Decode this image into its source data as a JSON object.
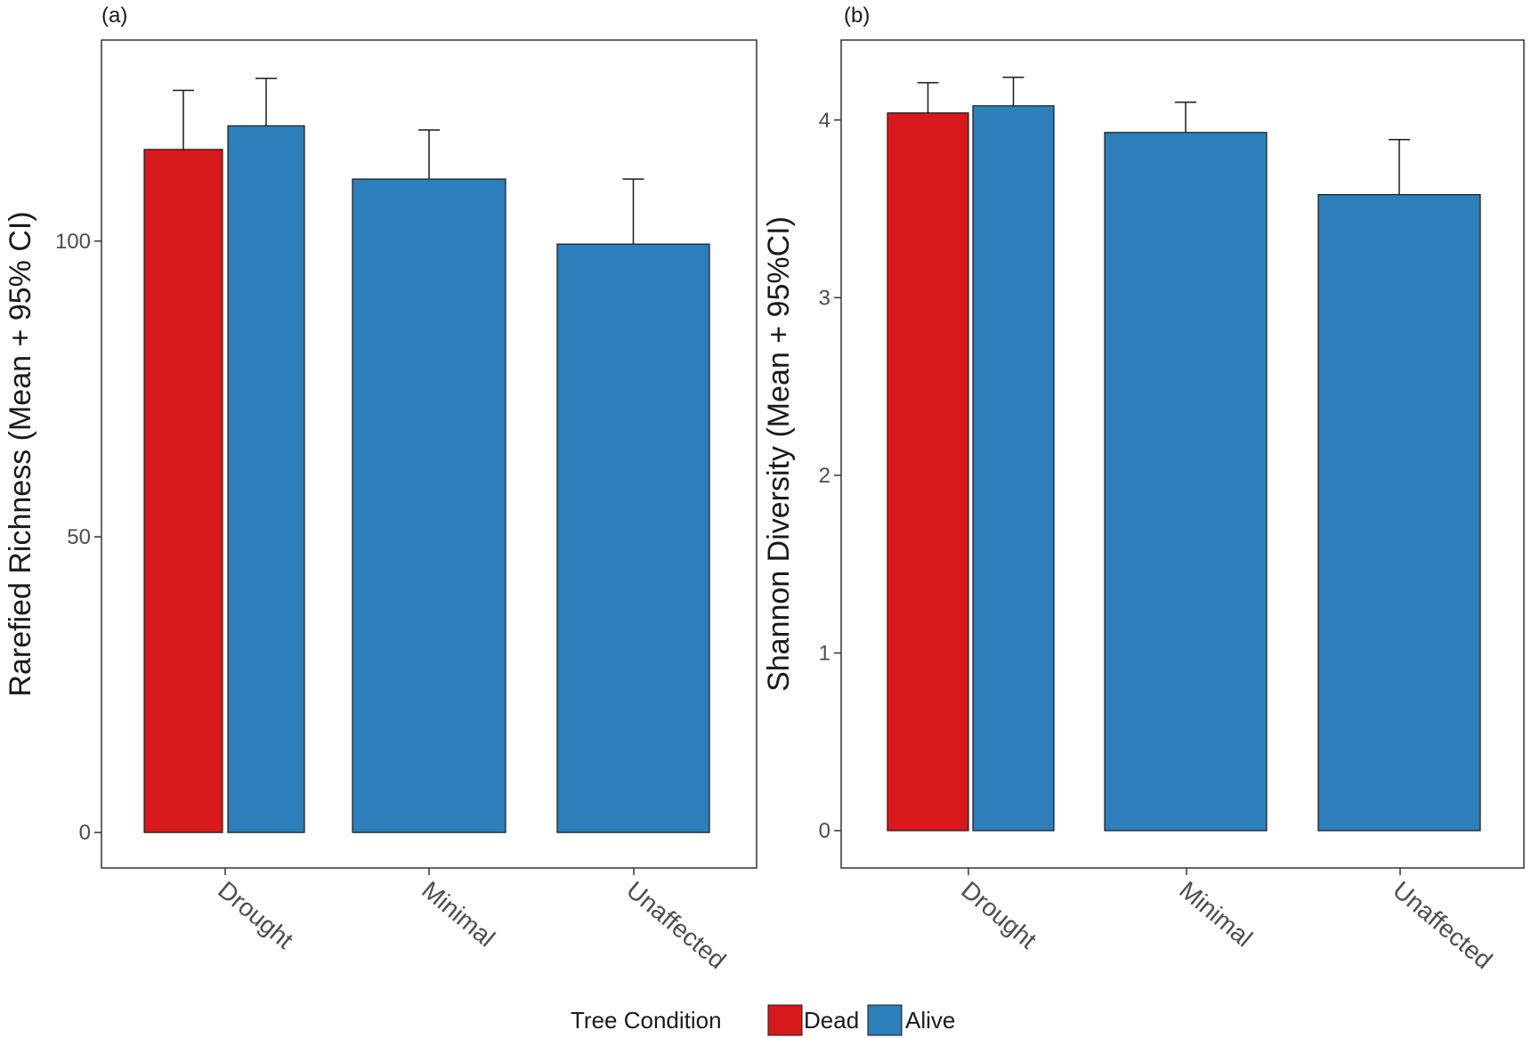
{
  "colors": {
    "Dead": "#d7191c",
    "Alive": "#2c7fb8",
    "axis": "#333333",
    "tick_text": "#4d4d4d"
  },
  "legend": {
    "title": "Tree Condition",
    "items": [
      "Dead",
      "Alive"
    ],
    "position": "bottom-center"
  },
  "chart_data": [
    {
      "panel_label": "(a)",
      "type": "bar",
      "title": "",
      "xlabel": "",
      "ylabel": "Rarefied Richness (Mean + 95% CI)",
      "categories": [
        "Drought",
        "Minimal",
        "Unaffected"
      ],
      "ylim": [
        -6,
        134
      ],
      "yticks": [
        0,
        50,
        100
      ],
      "ytick_labels": [
        "0",
        "50",
        "100"
      ],
      "bars": [
        {
          "category": "Drought",
          "group": "Dead",
          "value": 115.5,
          "ci_upper": 125.5
        },
        {
          "category": "Drought",
          "group": "Alive",
          "value": 119.5,
          "ci_upper": 127.5
        },
        {
          "category": "Minimal",
          "group": "Alive",
          "value": 110.5,
          "ci_upper": 118.8
        },
        {
          "category": "Unaffected",
          "group": "Alive",
          "value": 99.5,
          "ci_upper": 110.5
        }
      ]
    },
    {
      "panel_label": "(b)",
      "type": "bar",
      "title": "",
      "xlabel": "",
      "ylabel": "Shannon Diversity (Mean + 95%CI)",
      "categories": [
        "Drought",
        "Minimal",
        "Unaffected"
      ],
      "ylim": [
        -0.21,
        4.45
      ],
      "yticks": [
        0,
        1,
        2,
        3,
        4
      ],
      "ytick_labels": [
        "0",
        "1",
        "2",
        "3",
        "4"
      ],
      "bars": [
        {
          "category": "Drought",
          "group": "Dead",
          "value": 4.04,
          "ci_upper": 4.21
        },
        {
          "category": "Drought",
          "group": "Alive",
          "value": 4.08,
          "ci_upper": 4.24
        },
        {
          "category": "Minimal",
          "group": "Alive",
          "value": 3.93,
          "ci_upper": 4.1
        },
        {
          "category": "Unaffected",
          "group": "Alive",
          "value": 3.58,
          "ci_upper": 3.89
        }
      ]
    }
  ]
}
